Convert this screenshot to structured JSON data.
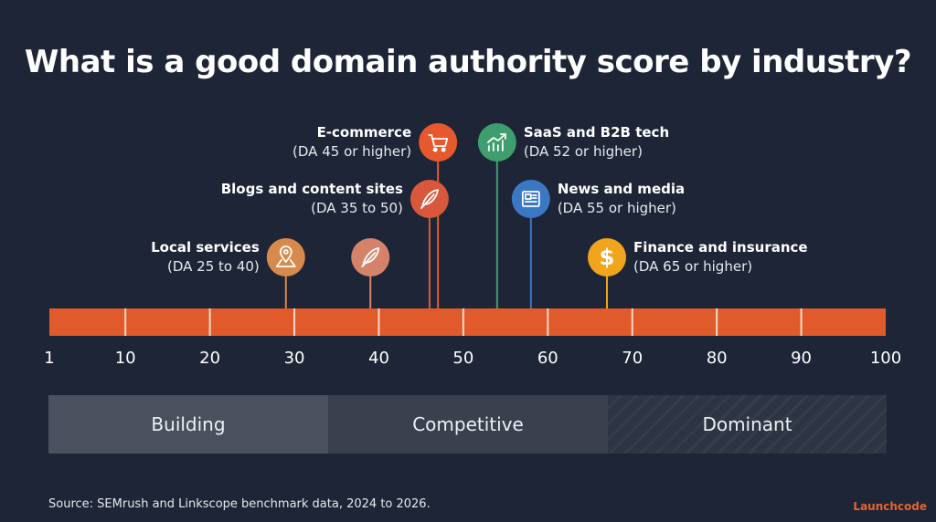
{
  "chart_data": {
    "type": "timeline",
    "title": "What is a good domain authority score by industry?",
    "axis": {
      "min": 1,
      "max": 100,
      "ticks": [
        1,
        10,
        20,
        30,
        40,
        50,
        60,
        70,
        80,
        90,
        100
      ]
    },
    "markers": [
      {
        "name": "Local services",
        "range": "(DA 25 to 40)",
        "value": 29,
        "icon": "map-pin-icon",
        "color": "#d68a4c",
        "label_side": "left",
        "level": 3
      },
      {
        "name": "",
        "range": "",
        "value": 39,
        "icon": "feather-icon",
        "color": "#d4836a",
        "label_side": "none",
        "level": 3
      },
      {
        "name": "Blogs and content sites",
        "range": "(DA 35 to 50)",
        "value": 46,
        "icon": "feather-icon",
        "color": "#d9573a",
        "label_side": "left",
        "level": 2
      },
      {
        "name": "E-commerce",
        "range": "(DA 45 or higher)",
        "value": 47,
        "icon": "cart-icon",
        "color": "#e6592e",
        "label_side": "left",
        "level": 1
      },
      {
        "name": "SaaS and B2B tech",
        "range": "(DA 52 or higher)",
        "value": 54,
        "icon": "chart-up-icon",
        "color": "#3e9e6d",
        "label_side": "right",
        "level": 1
      },
      {
        "name": "News and media",
        "range": "(DA 55 or higher)",
        "value": 58,
        "icon": "newspaper-icon",
        "color": "#3a78c4",
        "label_side": "right",
        "level": 2
      },
      {
        "name": "Finance and insurance",
        "range": "(DA 65 or higher)",
        "value": 67,
        "icon": "dollar-icon",
        "color": "#f1a51d",
        "label_side": "right",
        "level": 3
      }
    ],
    "bands": [
      {
        "label": "Building",
        "from": 1,
        "to": 34
      },
      {
        "label": "Competitive",
        "from": 34,
        "to": 67
      },
      {
        "label": "Dominant",
        "from": 67,
        "to": 100
      }
    ],
    "bar_color": "#e05a2b"
  },
  "footer": {
    "source": "Source: SEMrush and Linkscope benchmark data, 2024 to 2026.",
    "brand": "Launchcode"
  }
}
